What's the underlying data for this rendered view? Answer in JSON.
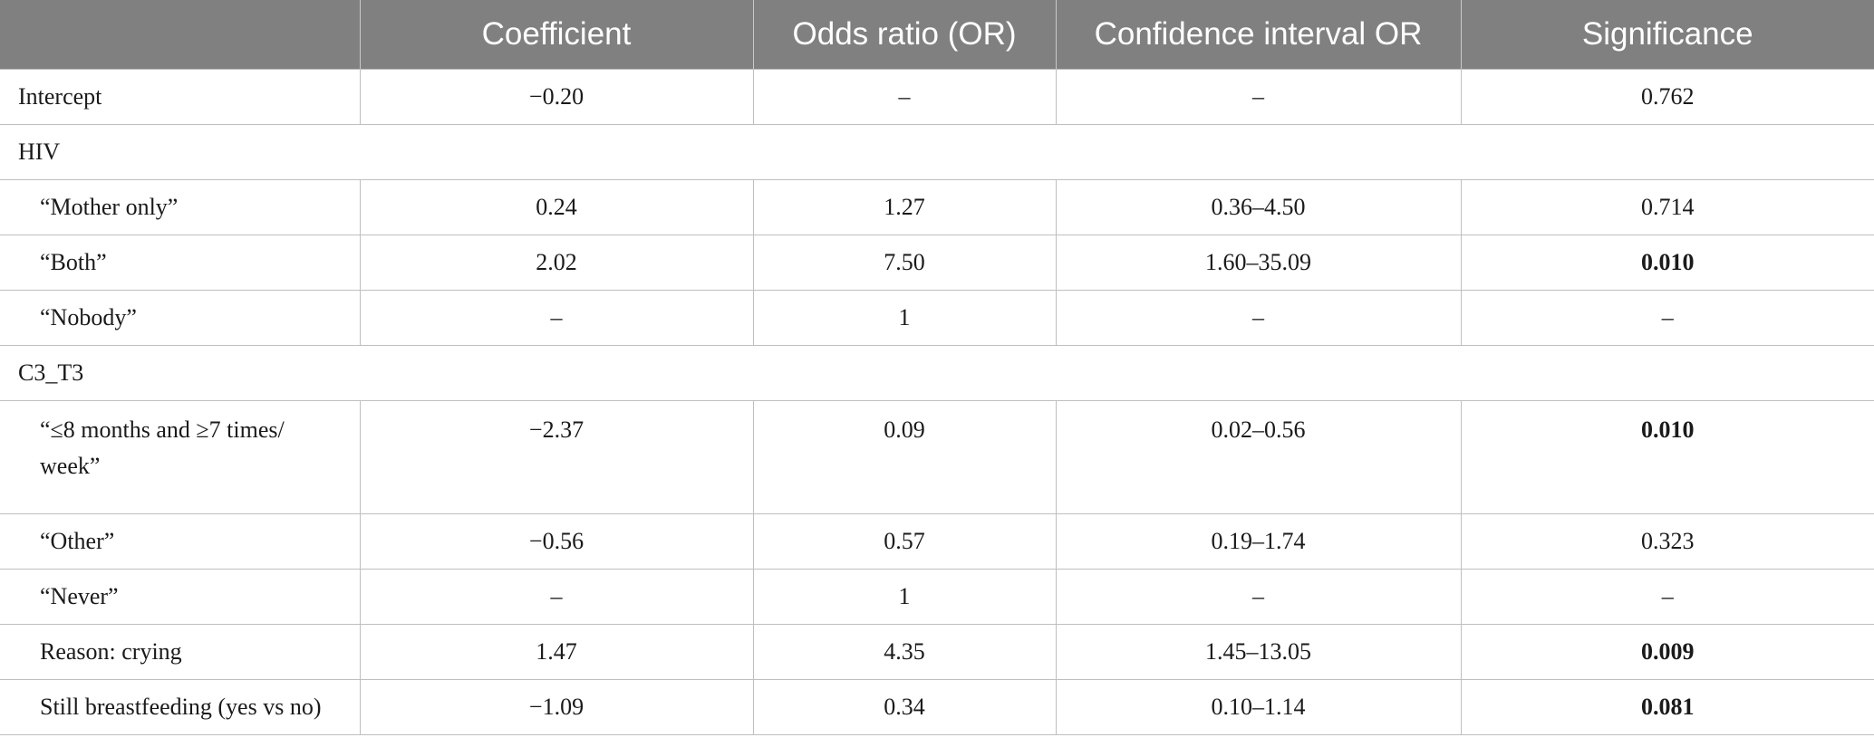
{
  "table": {
    "headers": [
      "",
      "Coefficient",
      "Odds ratio (OR)",
      "Confidence interval OR",
      "Significance"
    ],
    "rows": [
      {
        "label": "Intercept",
        "indent": false,
        "coefficient": "−0.20",
        "odds_ratio": "–",
        "ci": "–",
        "significance": "0.762",
        "sig_bold": false
      },
      {
        "group": "HIV"
      },
      {
        "label": "“Mother only”",
        "indent": true,
        "coefficient": "0.24",
        "odds_ratio": "1.27",
        "ci": "0.36–4.50",
        "significance": "0.714",
        "sig_bold": false
      },
      {
        "label": "“Both”",
        "indent": true,
        "coefficient": "2.02",
        "odds_ratio": "7.50",
        "ci": "1.60–35.09",
        "significance": "0.010",
        "sig_bold": true
      },
      {
        "label": "“Nobody”",
        "indent": true,
        "coefficient": "–",
        "odds_ratio": "1",
        "ci": "–",
        "significance": "–",
        "sig_bold": false
      },
      {
        "group": "C3_T3"
      },
      {
        "label": "“≤8 months and ≥7 times/ week”",
        "indent": true,
        "tall": true,
        "coefficient": "−2.37",
        "odds_ratio": "0.09",
        "ci": "0.02–0.56",
        "significance": "0.010",
        "sig_bold": true
      },
      {
        "label": "“Other”",
        "indent": true,
        "coefficient": "−0.56",
        "odds_ratio": "0.57",
        "ci": "0.19–1.74",
        "significance": "0.323",
        "sig_bold": false
      },
      {
        "label": "“Never”",
        "indent": true,
        "coefficient": "–",
        "odds_ratio": "1",
        "ci": "–",
        "significance": "–",
        "sig_bold": false
      },
      {
        "label": "Reason: crying",
        "indent": true,
        "coefficient": "1.47",
        "odds_ratio": "4.35",
        "ci": "1.45–13.05",
        "significance": "0.009",
        "sig_bold": true
      },
      {
        "label": "Still breastfeeding (yes vs no)",
        "indent": true,
        "coefficient": "−1.09",
        "odds_ratio": "0.34",
        "ci": "0.10–1.14",
        "significance": "0.081",
        "sig_bold": true
      }
    ]
  }
}
